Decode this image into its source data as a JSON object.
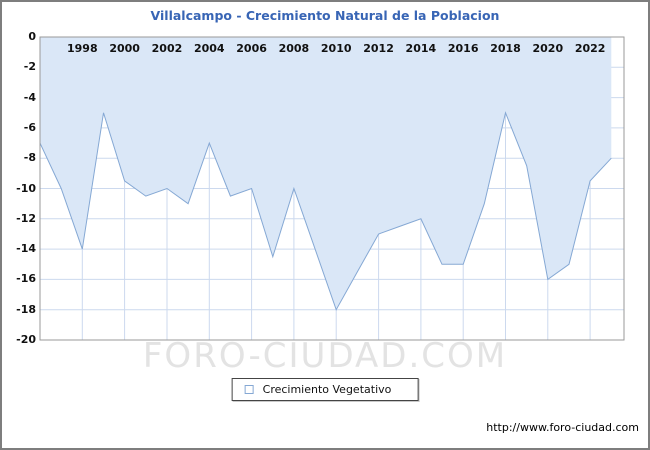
{
  "title": "Villalcampo - Crecimiento Natural de la Poblacion",
  "legend": {
    "label": "Crecimiento Vegetativo"
  },
  "watermark": "FORO-CIUDAD.COM",
  "footer": {
    "url": "http://www.foro-ciudad.com"
  },
  "colors": {
    "title": "#3865b5",
    "area_fill": "#dae7f7",
    "line": "#85a8d4",
    "grid": "#ccd9ee",
    "plot_border": "#9a9a9a",
    "watermark": "#e3e3e3"
  },
  "chart_data": {
    "type": "area",
    "title": "Villalcampo - Crecimiento Natural de la Poblacion",
    "x": [
      1996,
      1997,
      1998,
      1999,
      2000,
      2001,
      2002,
      2003,
      2004,
      2005,
      2006,
      2007,
      2008,
      2009,
      2010,
      2011,
      2012,
      2013,
      2014,
      2015,
      2016,
      2017,
      2018,
      2019,
      2020,
      2021,
      2022,
      2023
    ],
    "series": [
      {
        "name": "Crecimiento Vegetativo",
        "values": [
          -7,
          -10,
          -14,
          -5,
          -9.5,
          -10.5,
          -10,
          -11,
          -7,
          -10.5,
          -10,
          -14.5,
          -10,
          -14,
          -18,
          -15.5,
          -13,
          -12.5,
          -12,
          -15,
          -15,
          -11,
          -5,
          -8.5,
          -16,
          -15,
          -9.5,
          -8
        ]
      }
    ],
    "xticks": [
      1998,
      2000,
      2002,
      2004,
      2006,
      2008,
      2010,
      2012,
      2014,
      2016,
      2018,
      2020,
      2022
    ],
    "yticks": [
      0,
      -2,
      -4,
      -6,
      -8,
      -10,
      -12,
      -14,
      -16,
      -18,
      -20
    ],
    "xlim": [
      1996,
      2023.6
    ],
    "ylim": [
      -20,
      0
    ],
    "grid": true,
    "legend_position": "bottom-center",
    "xlabel": "",
    "ylabel": ""
  }
}
